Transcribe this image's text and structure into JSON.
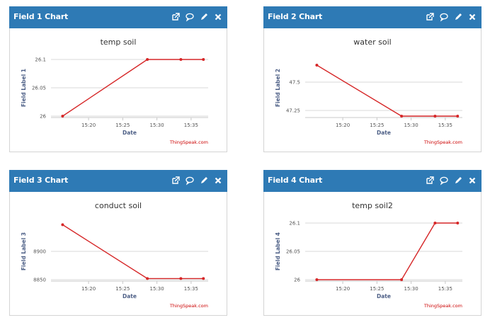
{
  "colors": {
    "header": "#2e7ab5",
    "line": "#d62728",
    "grid": "#d8d8d8"
  },
  "header_icons": [
    "external-link-icon",
    "comment-icon",
    "edit-icon",
    "close-icon"
  ],
  "chart_data": [
    {
      "type": "line",
      "panel_title": "Field 1 Chart",
      "title": "temp soil",
      "xlabel": "Date",
      "ylabel": "Field Label 1",
      "credit": "ThingSpeak.com",
      "x_ticks": [
        "15:20",
        "15:25",
        "15:30",
        "15:35"
      ],
      "y_ticks": [
        "26",
        "26.05",
        "26.1"
      ],
      "ylim": [
        26,
        26.1
      ],
      "x_minutes": [
        16.2,
        28.6,
        33.5,
        36.8
      ],
      "values": [
        26,
        26.1,
        26.1,
        26.1
      ]
    },
    {
      "type": "line",
      "panel_title": "Field 2 Chart",
      "title": "water soil",
      "xlabel": "Date",
      "ylabel": "Field Label 2",
      "credit": "ThingSpeak.com",
      "x_ticks": [
        "15:20",
        "15:25",
        "15:30",
        "15:35"
      ],
      "y_ticks": [
        "47.25",
        "47.5"
      ],
      "ylim": [
        47.2,
        47.7
      ],
      "x_minutes": [
        16.2,
        28.6,
        33.5,
        36.8
      ],
      "values": [
        47.65,
        47.2,
        47.2,
        47.2
      ]
    },
    {
      "type": "line",
      "panel_title": "Field 3 Chart",
      "title": "conduct soil",
      "xlabel": "Date",
      "ylabel": "Field Label 3",
      "credit": "ThingSpeak.com",
      "x_ticks": [
        "15:20",
        "15:25",
        "15:30",
        "15:35"
      ],
      "y_ticks": [
        "8850",
        "8900"
      ],
      "ylim": [
        8850,
        8950
      ],
      "x_minutes": [
        16.2,
        28.6,
        33.5,
        36.8
      ],
      "values": [
        8947,
        8852,
        8852,
        8852
      ]
    },
    {
      "type": "line",
      "panel_title": "Field 4 Chart",
      "title": "temp soil2",
      "xlabel": "Date",
      "ylabel": "Field Label 4",
      "credit": "ThingSpeak.com",
      "x_ticks": [
        "15:20",
        "15:25",
        "15:30",
        "15:35"
      ],
      "y_ticks": [
        "26",
        "26.05",
        "26.1"
      ],
      "ylim": [
        26,
        26.1
      ],
      "x_minutes": [
        16.2,
        28.6,
        33.5,
        36.8
      ],
      "values": [
        26,
        26,
        26.1,
        26.1
      ]
    }
  ]
}
